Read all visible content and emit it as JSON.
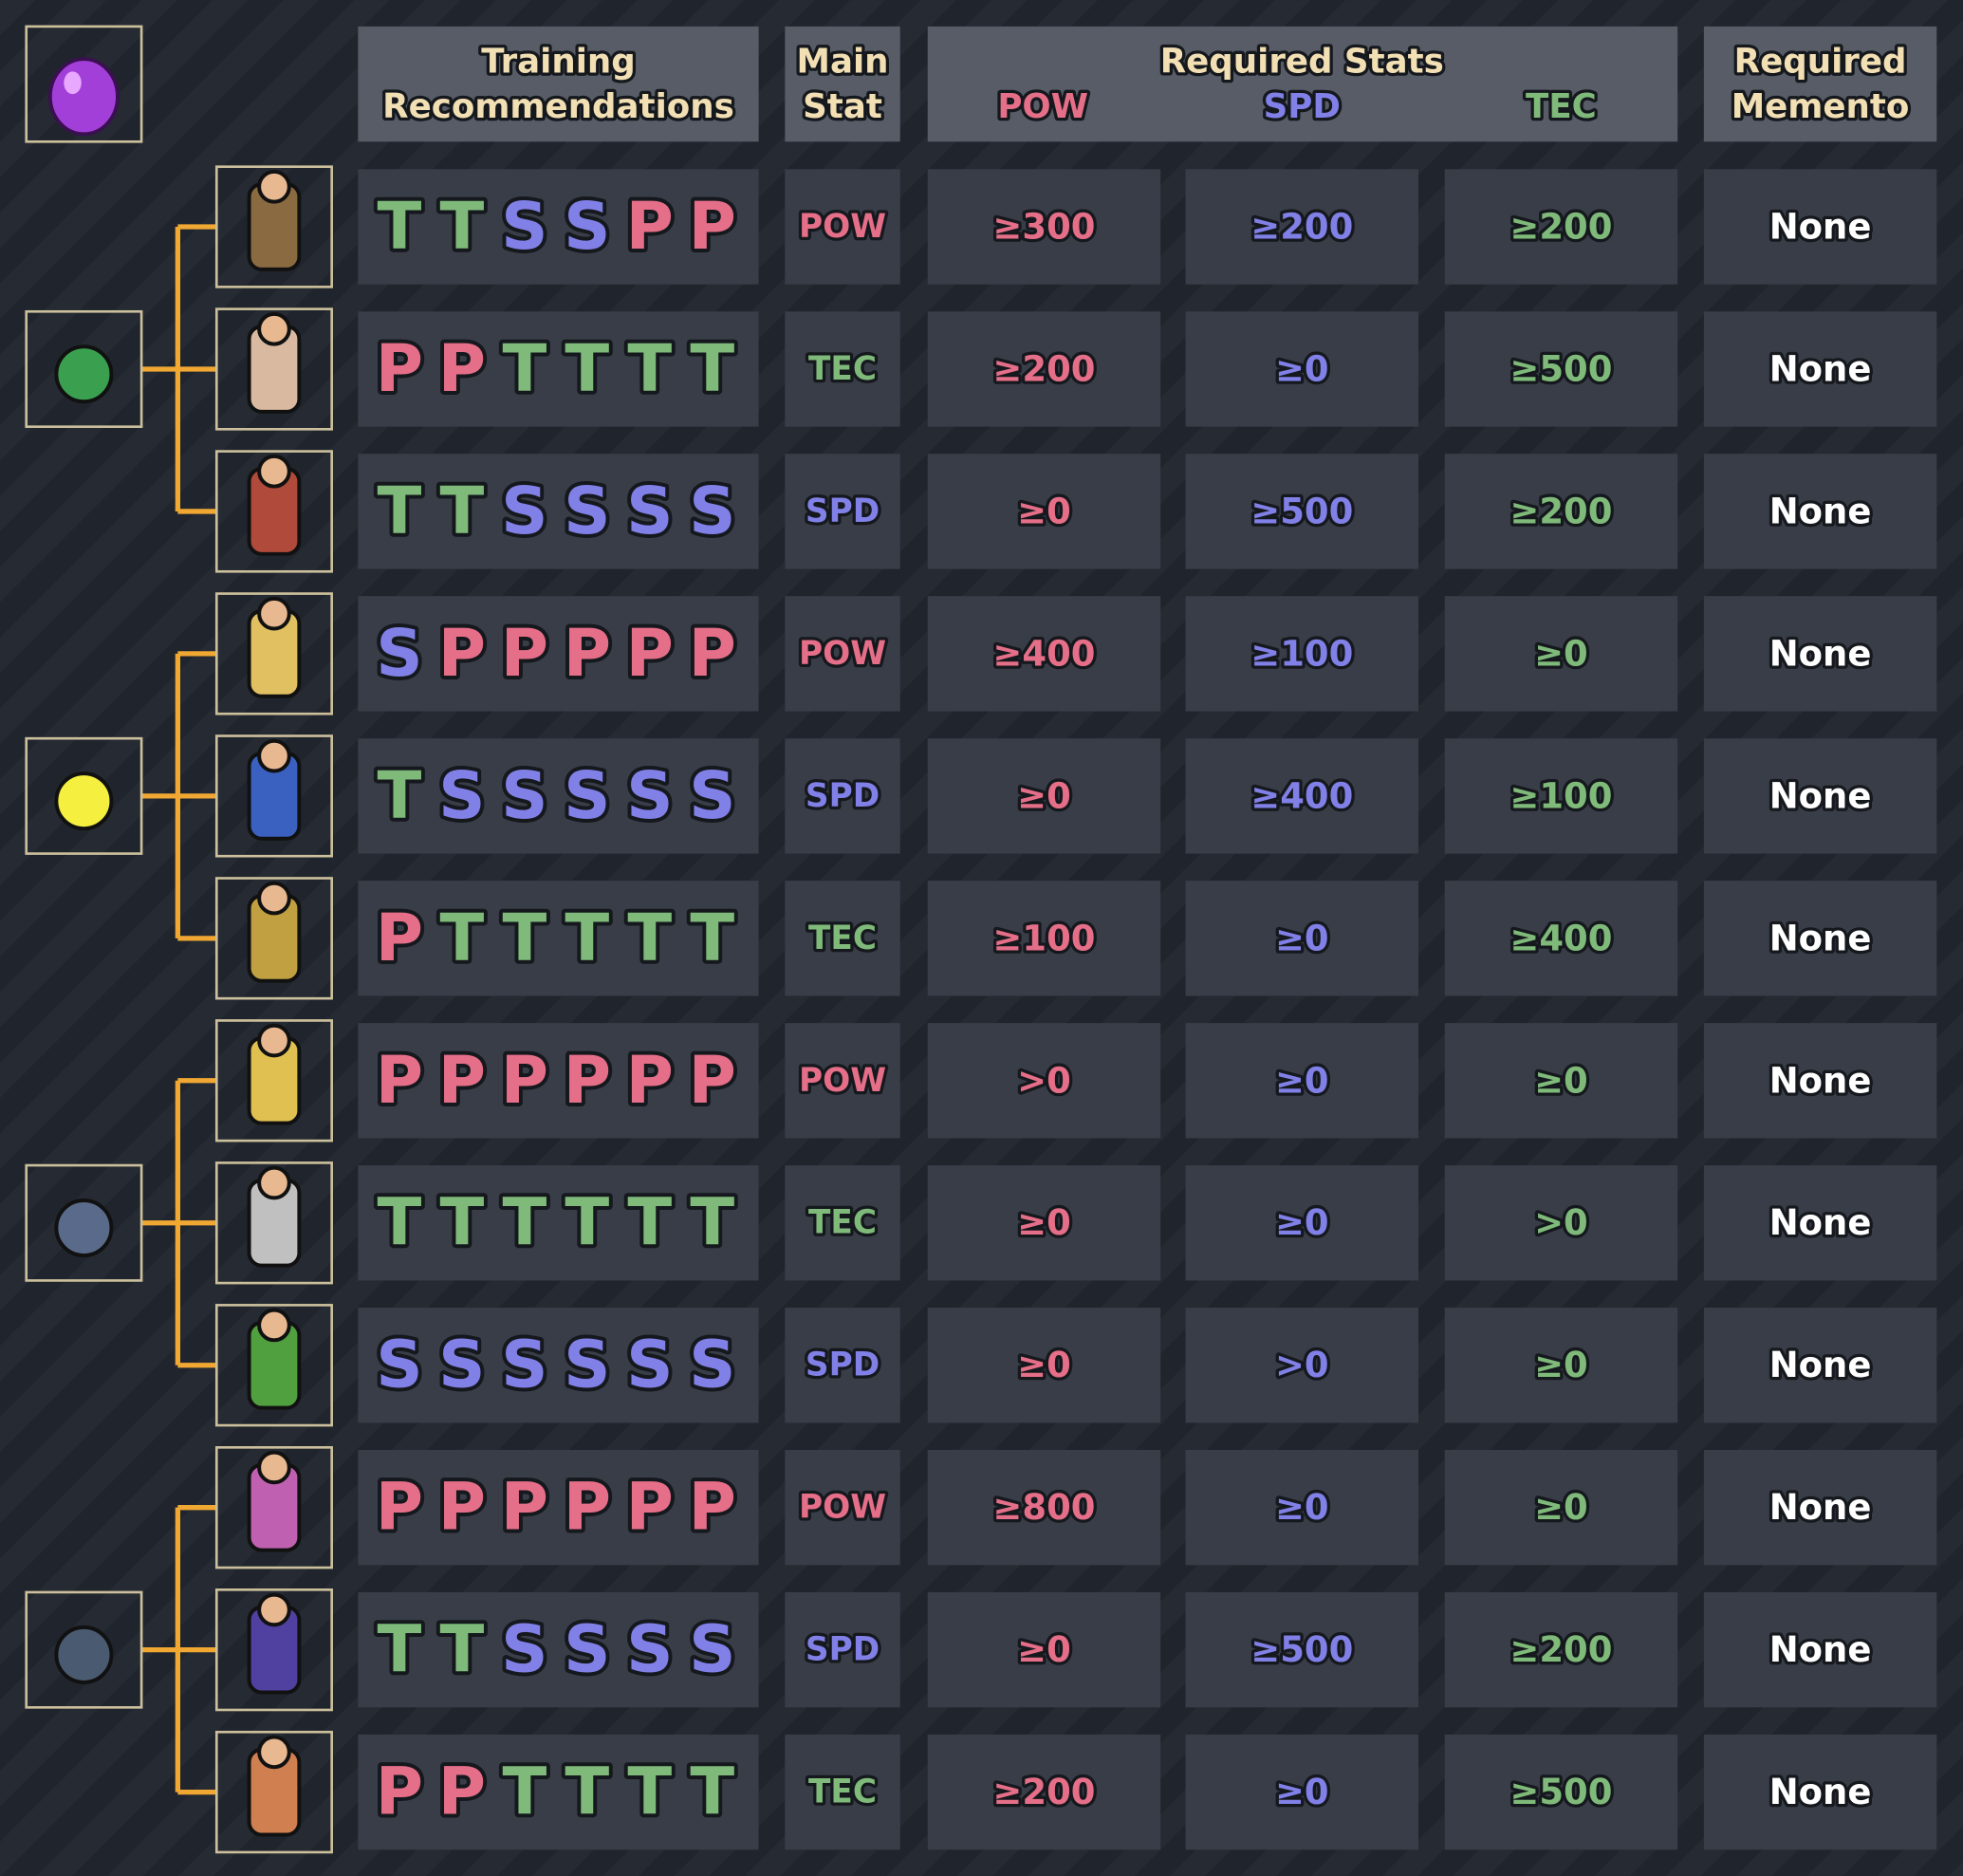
{
  "header": {
    "training": [
      "Training",
      "Recommendations"
    ],
    "main_stat": [
      "Main",
      "Stat"
    ],
    "required_stats": "Required Stats",
    "pow": "POW",
    "spd": "SPD",
    "tec": "TEC",
    "memento": [
      "Required",
      "Memento"
    ]
  },
  "colors": {
    "P": "#e56e88",
    "S": "#8080e6",
    "T": "#7fba7a",
    "POW": "#e56e88",
    "SPD": "#8080e6",
    "TEC": "#7fba7a"
  },
  "rows": [
    {
      "training": [
        "T",
        "T",
        "S",
        "S",
        "P",
        "P"
      ],
      "main_stat": "POW",
      "pow": "≥300",
      "spd": "≥200",
      "tec": "≥200",
      "memento": "None"
    },
    {
      "training": [
        "P",
        "P",
        "T",
        "T",
        "T",
        "T"
      ],
      "main_stat": "TEC",
      "pow": "≥200",
      "spd": "≥0",
      "tec": "≥500",
      "memento": "None"
    },
    {
      "training": [
        "T",
        "T",
        "S",
        "S",
        "S",
        "S"
      ],
      "main_stat": "SPD",
      "pow": "≥0",
      "spd": "≥500",
      "tec": "≥200",
      "memento": "None"
    },
    {
      "training": [
        "S",
        "P",
        "P",
        "P",
        "P",
        "P"
      ],
      "main_stat": "POW",
      "pow": "≥400",
      "spd": "≥100",
      "tec": "≥0",
      "memento": "None"
    },
    {
      "training": [
        "T",
        "S",
        "S",
        "S",
        "S",
        "S"
      ],
      "main_stat": "SPD",
      "pow": "≥0",
      "spd": "≥400",
      "tec": "≥100",
      "memento": "None"
    },
    {
      "training": [
        "P",
        "T",
        "T",
        "T",
        "T",
        "T"
      ],
      "main_stat": "TEC",
      "pow": "≥100",
      "spd": "≥0",
      "tec": "≥400",
      "memento": "None"
    },
    {
      "training": [
        "P",
        "P",
        "P",
        "P",
        "P",
        "P"
      ],
      "main_stat": "POW",
      "pow": ">0",
      "spd": "≥0",
      "tec": "≥0",
      "memento": "None"
    },
    {
      "training": [
        "T",
        "T",
        "T",
        "T",
        "T",
        "T"
      ],
      "main_stat": "TEC",
      "pow": "≥0",
      "spd": "≥0",
      "tec": ">0",
      "memento": "None"
    },
    {
      "training": [
        "S",
        "S",
        "S",
        "S",
        "S",
        "S"
      ],
      "main_stat": "SPD",
      "pow": "≥0",
      "spd": ">0",
      "tec": "≥0",
      "memento": "None"
    },
    {
      "training": [
        "P",
        "P",
        "P",
        "P",
        "P",
        "P"
      ],
      "main_stat": "POW",
      "pow": "≥800",
      "spd": "≥0",
      "tec": "≥0",
      "memento": "None"
    },
    {
      "training": [
        "T",
        "T",
        "S",
        "S",
        "S",
        "S"
      ],
      "main_stat": "SPD",
      "pow": "≥0",
      "spd": "≥500",
      "tec": "≥200",
      "memento": "None"
    },
    {
      "training": [
        "P",
        "P",
        "T",
        "T",
        "T",
        "T"
      ],
      "main_stat": "TEC",
      "pow": "≥200",
      "spd": "≥0",
      "tec": "≥500",
      "memento": "None"
    }
  ]
}
